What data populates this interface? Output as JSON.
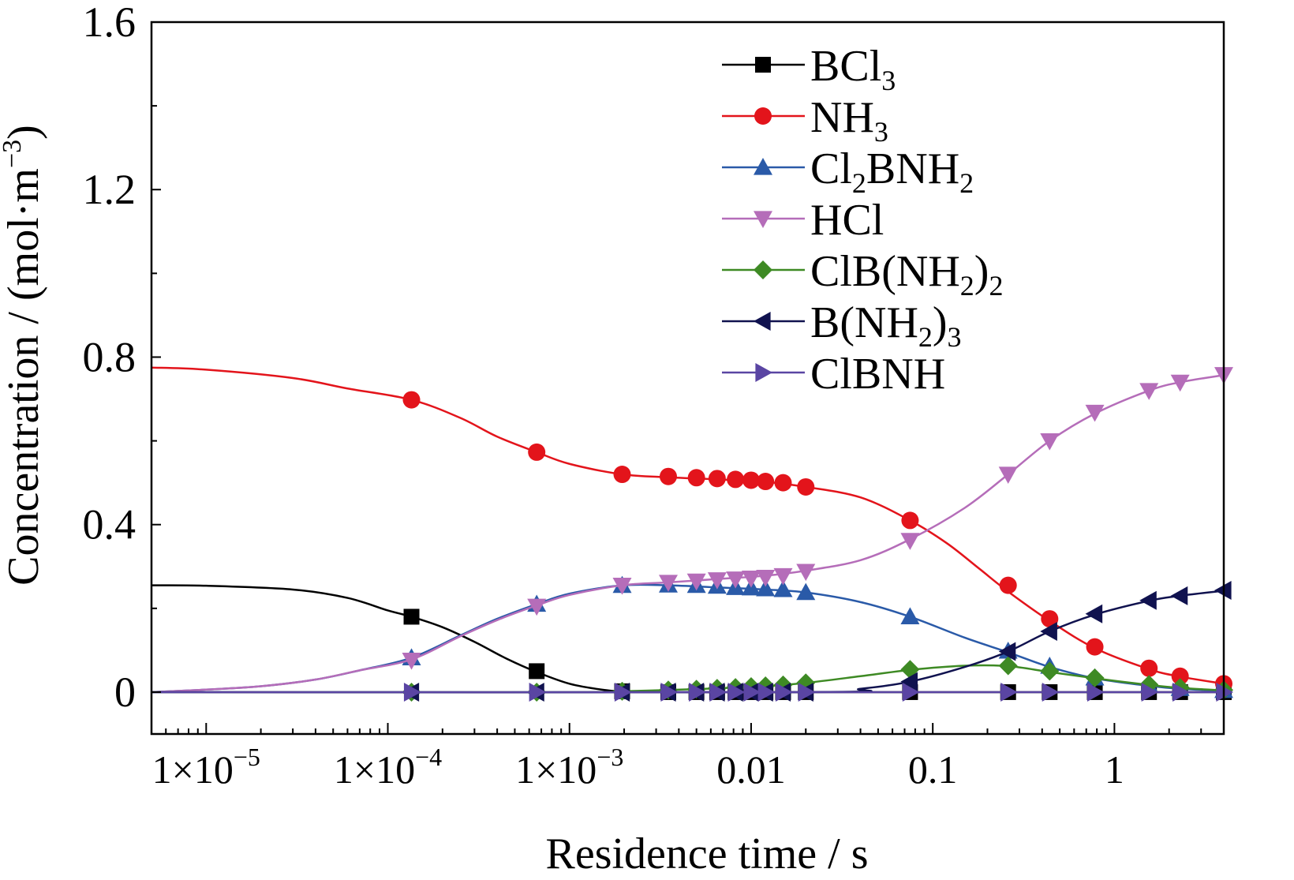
{
  "chart_data": {
    "type": "line",
    "xlabel": "Residence time / s",
    "ylabel": "Concentration / (mol·m",
    "ylabel_sup": "−3",
    "ylabel_close": ")",
    "xscale": "log",
    "xlim": [
      5e-06,
      4
    ],
    "ylim": [
      -0.1,
      1.6
    ],
    "x_ticks": [
      {
        "value": 1e-05,
        "label": "1×10",
        "exp": "−5"
      },
      {
        "value": 0.0001,
        "label": "1×10",
        "exp": "−4"
      },
      {
        "value": 0.001,
        "label": "1×10",
        "exp": "−3"
      },
      {
        "value": 0.01,
        "label": "0.01",
        "exp": ""
      },
      {
        "value": 0.1,
        "label": "0.1",
        "exp": ""
      },
      {
        "value": 1,
        "label": "1",
        "exp": ""
      }
    ],
    "y_ticks": [
      {
        "value": 0,
        "label": "0"
      },
      {
        "value": 0.4,
        "label": "0.4"
      },
      {
        "value": 0.8,
        "label": "0.8"
      },
      {
        "value": 1.2,
        "label": "1.2"
      },
      {
        "value": 1.6,
        "label": "1.6"
      }
    ],
    "legend_position": "top-right",
    "series": [
      {
        "name": "BCl3",
        "label_parts": [
          [
            "BCl",
            ""
          ],
          [
            "3",
            "sub"
          ]
        ],
        "color": "#000000",
        "marker": "square",
        "curve": [
          [
            5e-06,
            0.255
          ],
          [
            1e-05,
            0.254
          ],
          [
            3e-05,
            0.245
          ],
          [
            6e-05,
            0.225
          ],
          [
            0.0001,
            0.195
          ],
          [
            0.000135,
            0.18
          ],
          [
            0.0002,
            0.155
          ],
          [
            0.0003,
            0.12
          ],
          [
            0.00045,
            0.08
          ],
          [
            0.00066,
            0.048
          ],
          [
            0.001,
            0.02
          ],
          [
            0.0015,
            0.006
          ],
          [
            0.002,
            0.002
          ],
          [
            0.004,
            0.0
          ],
          [
            4,
            0.0
          ]
        ],
        "points": [
          [
            0.000135,
            0.18
          ],
          [
            0.00066,
            0.05
          ],
          [
            0.00195,
            0.002
          ],
          [
            0.0035,
            0.0
          ],
          [
            0.005,
            0.0
          ],
          [
            0.0065,
            0.0
          ],
          [
            0.0082,
            0.0
          ],
          [
            0.01,
            0.0
          ],
          [
            0.012,
            0.0
          ],
          [
            0.015,
            0.0
          ],
          [
            0.02,
            0.0
          ],
          [
            0.075,
            0.0
          ],
          [
            0.26,
            0.0
          ],
          [
            0.44,
            0.0
          ],
          [
            0.78,
            0.0
          ],
          [
            1.55,
            0.0
          ],
          [
            2.3,
            0.0
          ],
          [
            4,
            0.0
          ]
        ]
      },
      {
        "name": "NH3",
        "label_parts": [
          [
            "NH",
            ""
          ],
          [
            "3",
            "sub"
          ]
        ],
        "color": "#e3141b",
        "marker": "circle",
        "curve": [
          [
            5e-06,
            0.775
          ],
          [
            1e-05,
            0.77
          ],
          [
            3e-05,
            0.75
          ],
          [
            6e-05,
            0.725
          ],
          [
            0.000135,
            0.698
          ],
          [
            0.00025,
            0.655
          ],
          [
            0.0004,
            0.61
          ],
          [
            0.00066,
            0.573
          ],
          [
            0.001,
            0.545
          ],
          [
            0.00195,
            0.52
          ],
          [
            0.0035,
            0.513
          ],
          [
            0.0065,
            0.508
          ],
          [
            0.012,
            0.502
          ],
          [
            0.02,
            0.49
          ],
          [
            0.04,
            0.465
          ],
          [
            0.075,
            0.41
          ],
          [
            0.12,
            0.355
          ],
          [
            0.18,
            0.295
          ],
          [
            0.26,
            0.24
          ],
          [
            0.44,
            0.17
          ],
          [
            0.78,
            0.105
          ],
          [
            1.55,
            0.055
          ],
          [
            2.3,
            0.037
          ],
          [
            4,
            0.02
          ]
        ],
        "points": [
          [
            0.000135,
            0.698
          ],
          [
            0.00066,
            0.573
          ],
          [
            0.00195,
            0.52
          ],
          [
            0.0035,
            0.515
          ],
          [
            0.005,
            0.512
          ],
          [
            0.0065,
            0.51
          ],
          [
            0.0082,
            0.508
          ],
          [
            0.01,
            0.506
          ],
          [
            0.012,
            0.503
          ],
          [
            0.015,
            0.5
          ],
          [
            0.02,
            0.49
          ],
          [
            0.075,
            0.41
          ],
          [
            0.26,
            0.255
          ],
          [
            0.44,
            0.175
          ],
          [
            0.78,
            0.108
          ],
          [
            1.55,
            0.057
          ],
          [
            2.3,
            0.038
          ],
          [
            4,
            0.02
          ]
        ]
      },
      {
        "name": "Cl2BNH2",
        "label_parts": [
          [
            "Cl",
            ""
          ],
          [
            "2",
            "sub"
          ],
          [
            "BNH",
            ""
          ],
          [
            "2",
            "sub"
          ]
        ],
        "color": "#2a5aa8",
        "marker": "triangle-up",
        "curve": [
          [
            5e-06,
            0.0
          ],
          [
            1e-05,
            0.006
          ],
          [
            2e-05,
            0.014
          ],
          [
            4e-05,
            0.03
          ],
          [
            7e-05,
            0.052
          ],
          [
            0.000135,
            0.082
          ],
          [
            0.00025,
            0.135
          ],
          [
            0.0004,
            0.175
          ],
          [
            0.00066,
            0.21
          ],
          [
            0.001,
            0.235
          ],
          [
            0.00195,
            0.255
          ],
          [
            0.0035,
            0.255
          ],
          [
            0.0065,
            0.25
          ],
          [
            0.012,
            0.245
          ],
          [
            0.02,
            0.238
          ],
          [
            0.04,
            0.215
          ],
          [
            0.075,
            0.18
          ],
          [
            0.15,
            0.13
          ],
          [
            0.26,
            0.095
          ],
          [
            0.44,
            0.06
          ],
          [
            0.78,
            0.033
          ],
          [
            1.55,
            0.015
          ],
          [
            2.3,
            0.008
          ],
          [
            4,
            0.003
          ]
        ],
        "points": [
          [
            0.000135,
            0.082
          ],
          [
            0.00066,
            0.21
          ],
          [
            0.00195,
            0.255
          ],
          [
            0.0035,
            0.256
          ],
          [
            0.005,
            0.255
          ],
          [
            0.0065,
            0.253
          ],
          [
            0.0082,
            0.25
          ],
          [
            0.01,
            0.249
          ],
          [
            0.012,
            0.247
          ],
          [
            0.015,
            0.245
          ],
          [
            0.02,
            0.238
          ],
          [
            0.075,
            0.18
          ],
          [
            0.26,
            0.098
          ],
          [
            0.44,
            0.062
          ],
          [
            0.78,
            0.034
          ],
          [
            1.55,
            0.016
          ],
          [
            2.3,
            0.009
          ],
          [
            4,
            0.004
          ]
        ]
      },
      {
        "name": "HCl",
        "label_parts": [
          [
            "HCl",
            ""
          ]
        ],
        "color": "#b56db9",
        "marker": "triangle-down",
        "curve": [
          [
            5e-06,
            0.0
          ],
          [
            1e-05,
            0.006
          ],
          [
            2e-05,
            0.014
          ],
          [
            4e-05,
            0.03
          ],
          [
            7e-05,
            0.052
          ],
          [
            0.000135,
            0.078
          ],
          [
            0.00025,
            0.133
          ],
          [
            0.0004,
            0.172
          ],
          [
            0.00066,
            0.207
          ],
          [
            0.001,
            0.232
          ],
          [
            0.00195,
            0.255
          ],
          [
            0.0035,
            0.262
          ],
          [
            0.0065,
            0.27
          ],
          [
            0.012,
            0.278
          ],
          [
            0.02,
            0.29
          ],
          [
            0.04,
            0.315
          ],
          [
            0.075,
            0.365
          ],
          [
            0.15,
            0.44
          ],
          [
            0.26,
            0.52
          ],
          [
            0.44,
            0.6
          ],
          [
            0.78,
            0.665
          ],
          [
            1.55,
            0.72
          ],
          [
            2.3,
            0.74
          ],
          [
            4,
            0.757
          ]
        ],
        "points": [
          [
            0.000135,
            0.076
          ],
          [
            0.00066,
            0.205
          ],
          [
            0.00195,
            0.255
          ],
          [
            0.0035,
            0.262
          ],
          [
            0.005,
            0.265
          ],
          [
            0.0065,
            0.268
          ],
          [
            0.0082,
            0.27
          ],
          [
            0.01,
            0.272
          ],
          [
            0.012,
            0.274
          ],
          [
            0.015,
            0.278
          ],
          [
            0.02,
            0.288
          ],
          [
            0.075,
            0.362
          ],
          [
            0.26,
            0.52
          ],
          [
            0.44,
            0.6
          ],
          [
            0.78,
            0.668
          ],
          [
            1.55,
            0.72
          ],
          [
            2.3,
            0.74
          ],
          [
            4,
            0.758
          ]
        ]
      },
      {
        "name": "ClB(NH2)2",
        "label_parts": [
          [
            "ClB(NH",
            ""
          ],
          [
            "2",
            "sub"
          ],
          [
            ")",
            ""
          ],
          [
            "2",
            "sub"
          ]
        ],
        "color": "#3e8a24",
        "marker": "diamond",
        "curve": [
          [
            5e-06,
            0.0
          ],
          [
            0.001,
            0.0
          ],
          [
            0.00195,
            0.002
          ],
          [
            0.0035,
            0.005
          ],
          [
            0.0065,
            0.009
          ],
          [
            0.012,
            0.014
          ],
          [
            0.02,
            0.022
          ],
          [
            0.04,
            0.038
          ],
          [
            0.075,
            0.053
          ],
          [
            0.15,
            0.063
          ],
          [
            0.26,
            0.062
          ],
          [
            0.44,
            0.048
          ],
          [
            0.78,
            0.033
          ],
          [
            1.55,
            0.017
          ],
          [
            2.3,
            0.01
          ],
          [
            4,
            0.004
          ]
        ],
        "points": [
          [
            0.000135,
            0.0
          ],
          [
            0.00066,
            0.0
          ],
          [
            0.00195,
            0.002
          ],
          [
            0.0035,
            0.005
          ],
          [
            0.005,
            0.007
          ],
          [
            0.0065,
            0.009
          ],
          [
            0.0082,
            0.011
          ],
          [
            0.01,
            0.013
          ],
          [
            0.012,
            0.015
          ],
          [
            0.015,
            0.017
          ],
          [
            0.02,
            0.022
          ],
          [
            0.075,
            0.054
          ],
          [
            0.26,
            0.063
          ],
          [
            0.44,
            0.05
          ],
          [
            0.78,
            0.034
          ],
          [
            1.55,
            0.018
          ],
          [
            2.3,
            0.011
          ],
          [
            4,
            0.005
          ]
        ]
      },
      {
        "name": "B(NH2)3",
        "label_parts": [
          [
            "B(NH",
            ""
          ],
          [
            "2",
            "sub"
          ],
          [
            ")",
            ""
          ],
          [
            "3",
            "sub"
          ]
        ],
        "color": "#10124f",
        "marker": "triangle-left",
        "curve": [
          [
            5e-06,
            0.0
          ],
          [
            0.02,
            0.0
          ],
          [
            0.04,
            0.008
          ],
          [
            0.075,
            0.025
          ],
          [
            0.15,
            0.06
          ],
          [
            0.26,
            0.097
          ],
          [
            0.44,
            0.145
          ],
          [
            0.78,
            0.185
          ],
          [
            1.55,
            0.218
          ],
          [
            2.3,
            0.23
          ],
          [
            4,
            0.242
          ]
        ],
        "points": [
          [
            0.000135,
            0.0
          ],
          [
            0.00066,
            0.0
          ],
          [
            0.00195,
            0.0
          ],
          [
            0.0035,
            0.0
          ],
          [
            0.005,
            0.0
          ],
          [
            0.0065,
            0.0
          ],
          [
            0.0082,
            0.0
          ],
          [
            0.01,
            0.0
          ],
          [
            0.012,
            0.0
          ],
          [
            0.015,
            0.0
          ],
          [
            0.02,
            0.0
          ],
          [
            0.075,
            0.025
          ],
          [
            0.26,
            0.097
          ],
          [
            0.44,
            0.145
          ],
          [
            0.78,
            0.187
          ],
          [
            1.55,
            0.219
          ],
          [
            2.3,
            0.23
          ],
          [
            4,
            0.243
          ]
        ]
      },
      {
        "name": "ClBNH",
        "label_parts": [
          [
            "ClBNH",
            ""
          ]
        ],
        "color": "#5a45a3",
        "marker": "triangle-right",
        "curve": [
          [
            5e-06,
            0.0
          ],
          [
            4,
            0.0
          ]
        ],
        "points": [
          [
            0.000135,
            0.0
          ],
          [
            0.00066,
            0.0
          ],
          [
            0.00195,
            0.0
          ],
          [
            0.0035,
            0.0
          ],
          [
            0.005,
            0.0
          ],
          [
            0.0065,
            0.0
          ],
          [
            0.0082,
            0.0
          ],
          [
            0.01,
            0.0
          ],
          [
            0.012,
            0.0
          ],
          [
            0.015,
            0.0
          ],
          [
            0.02,
            0.0
          ],
          [
            0.075,
            0.0
          ],
          [
            0.26,
            0.0
          ],
          [
            0.44,
            0.0
          ],
          [
            0.78,
            0.0
          ],
          [
            1.55,
            0.0
          ],
          [
            2.3,
            0.0
          ],
          [
            4,
            0.0
          ]
        ]
      }
    ]
  }
}
